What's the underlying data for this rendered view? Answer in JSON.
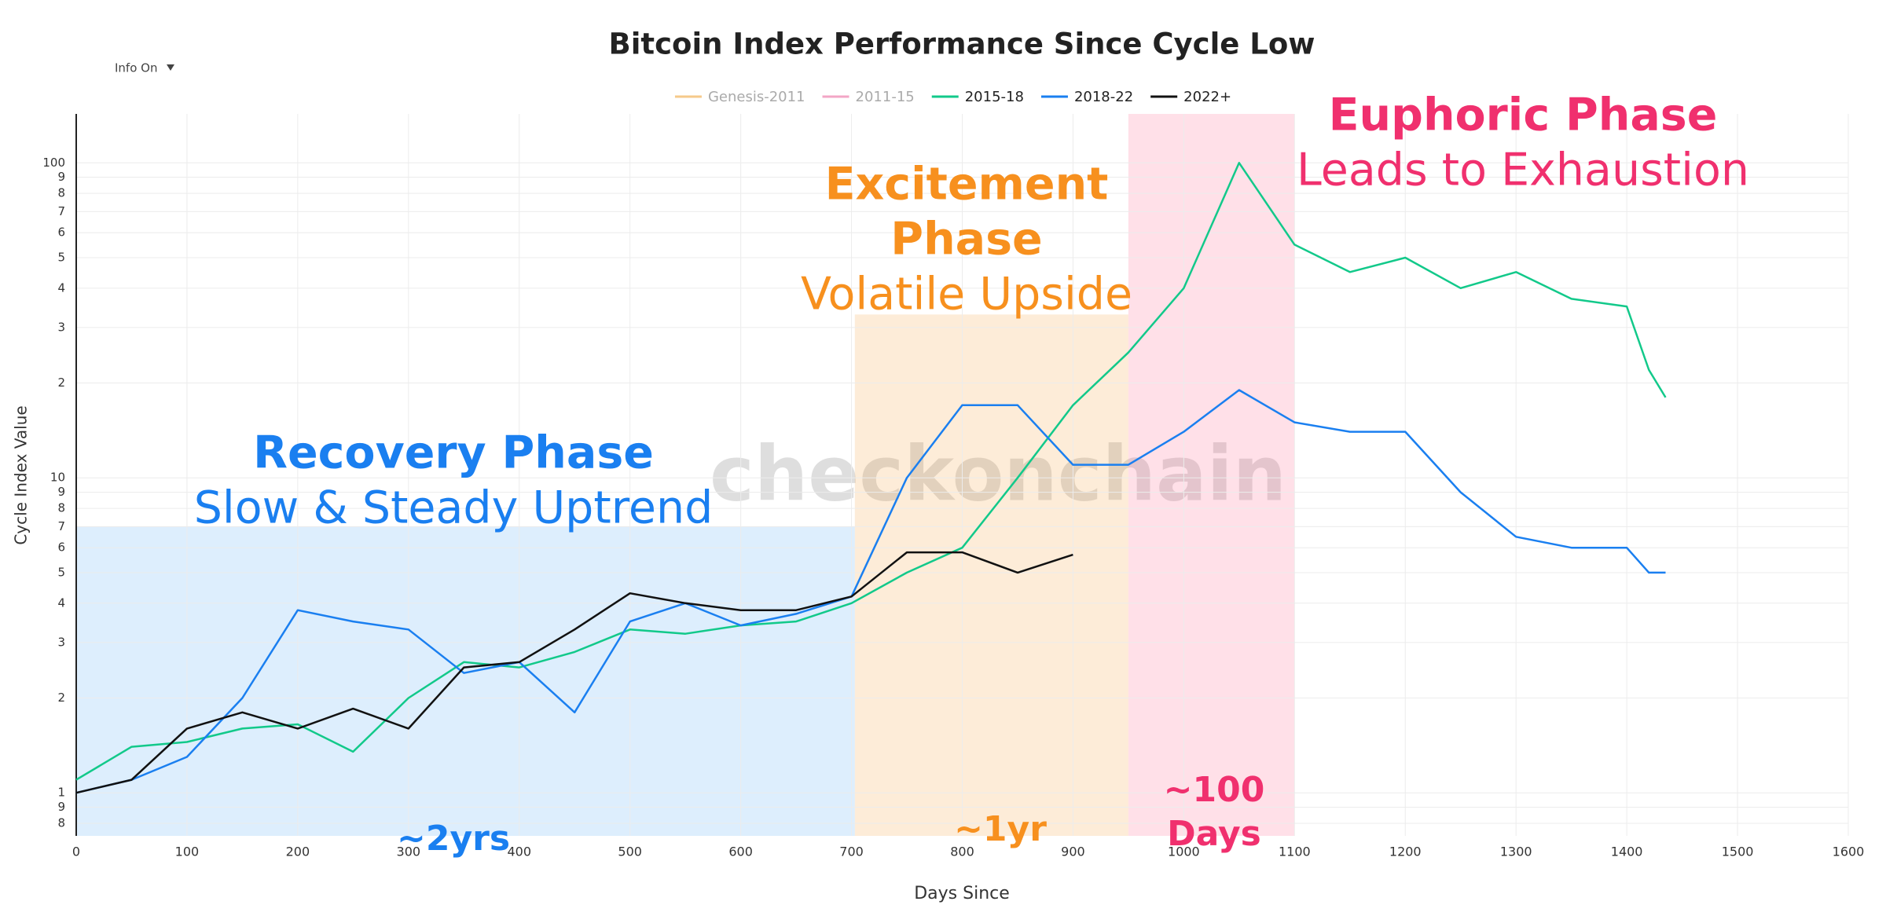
{
  "chart_data": {
    "type": "line",
    "title": "Bitcoin Index Performance Since Cycle Low",
    "xlabel": "Days Since",
    "ylabel": "Cycle Index Value",
    "watermark": "checkonchain",
    "menu": "Info On",
    "log_y": true,
    "grid": true,
    "legend": "top",
    "xlim": [
      0,
      1600
    ],
    "xticks": [
      0,
      100,
      200,
      300,
      400,
      500,
      600,
      700,
      800,
      900,
      1000,
      1100,
      1200,
      1300,
      1400,
      1500,
      1600
    ],
    "ylim": [
      0.73,
      143
    ],
    "yticks": [
      {
        "value": 0.8,
        "label": "8"
      },
      {
        "value": 0.9,
        "label": "9"
      },
      1,
      2,
      3,
      4,
      5,
      6,
      7,
      8,
      9,
      10,
      {
        "value": 20,
        "label": "2"
      },
      {
        "value": 30,
        "label": "3"
      },
      {
        "value": 40,
        "label": "4"
      },
      {
        "value": 50,
        "label": "5"
      },
      {
        "value": 60,
        "label": "6"
      },
      {
        "value": 70,
        "label": "7"
      },
      {
        "value": 80,
        "label": "8"
      },
      {
        "value": 90,
        "label": "9"
      },
      100
    ],
    "x": [
      0,
      50,
      100,
      150,
      200,
      250,
      300,
      350,
      400,
      450,
      500,
      550,
      600,
      650,
      700,
      750,
      800,
      850,
      900,
      950,
      1000,
      1050,
      1100,
      1150,
      1200,
      1250,
      1300,
      1350,
      1400,
      1420,
      1435
    ],
    "series": [
      {
        "name": "Genesis-2011",
        "color": "#f5c98a",
        "visible": false
      },
      {
        "name": "2011-15",
        "color": "#f3a6c6",
        "visible": false
      },
      {
        "name": "2015-18",
        "color": "#12c98a",
        "visible": true,
        "values": [
          1.1,
          1.4,
          1.45,
          1.6,
          1.65,
          1.35,
          2.0,
          2.6,
          2.5,
          2.8,
          3.3,
          3.2,
          3.4,
          3.5,
          4.0,
          5.0,
          6.0,
          10,
          17,
          25,
          40,
          100,
          55,
          45,
          50,
          40,
          45,
          37,
          35,
          22,
          18
        ]
      },
      {
        "name": "2018-22",
        "color": "#1a7ff0",
        "visible": true,
        "values": [
          1.0,
          1.1,
          1.3,
          2.0,
          3.8,
          3.5,
          3.3,
          2.4,
          2.6,
          1.8,
          3.5,
          4.0,
          3.4,
          3.7,
          4.2,
          10,
          17,
          17,
          11,
          11,
          14,
          19,
          15,
          14,
          14,
          9,
          6.5,
          6,
          6,
          5,
          5
        ]
      },
      {
        "name": "2022+",
        "color": "#111111",
        "visible": true,
        "values": [
          1.0,
          1.1,
          1.6,
          1.8,
          1.6,
          1.85,
          1.6,
          2.5,
          2.6,
          3.3,
          4.3,
          4.0,
          3.8,
          3.8,
          4.2,
          5.8,
          5.8,
          5.0,
          5.7,
          null,
          null,
          null,
          null,
          null,
          null,
          null,
          null,
          null,
          null,
          null,
          null
        ]
      }
    ],
    "phases": [
      {
        "title": [
          "Recovery Phase"
        ],
        "subtitle": "Slow & Steady Uptrend",
        "duration": [
          "~2yrs"
        ],
        "x0": 0,
        "x1": 703,
        "ymax": 7,
        "color": "#1a7ff0",
        "fill": "rgba(30,140,240,0.15)"
      },
      {
        "title": [
          "Excitement",
          "Phase"
        ],
        "subtitle": "Volatile Upside",
        "duration": [
          "~1yr"
        ],
        "x0": 703,
        "x1": 950,
        "ymax": 33,
        "color": "#f7901e",
        "fill": "rgba(245,160,60,0.2)"
      },
      {
        "title": [
          "Euphoric Phase"
        ],
        "subtitle": "Leads to Exhaustion",
        "duration": [
          "~100",
          "Days"
        ],
        "x0": 950,
        "x1": 1100,
        "color": "#f0306e",
        "fill": "rgba(255,100,140,0.2)"
      }
    ]
  }
}
